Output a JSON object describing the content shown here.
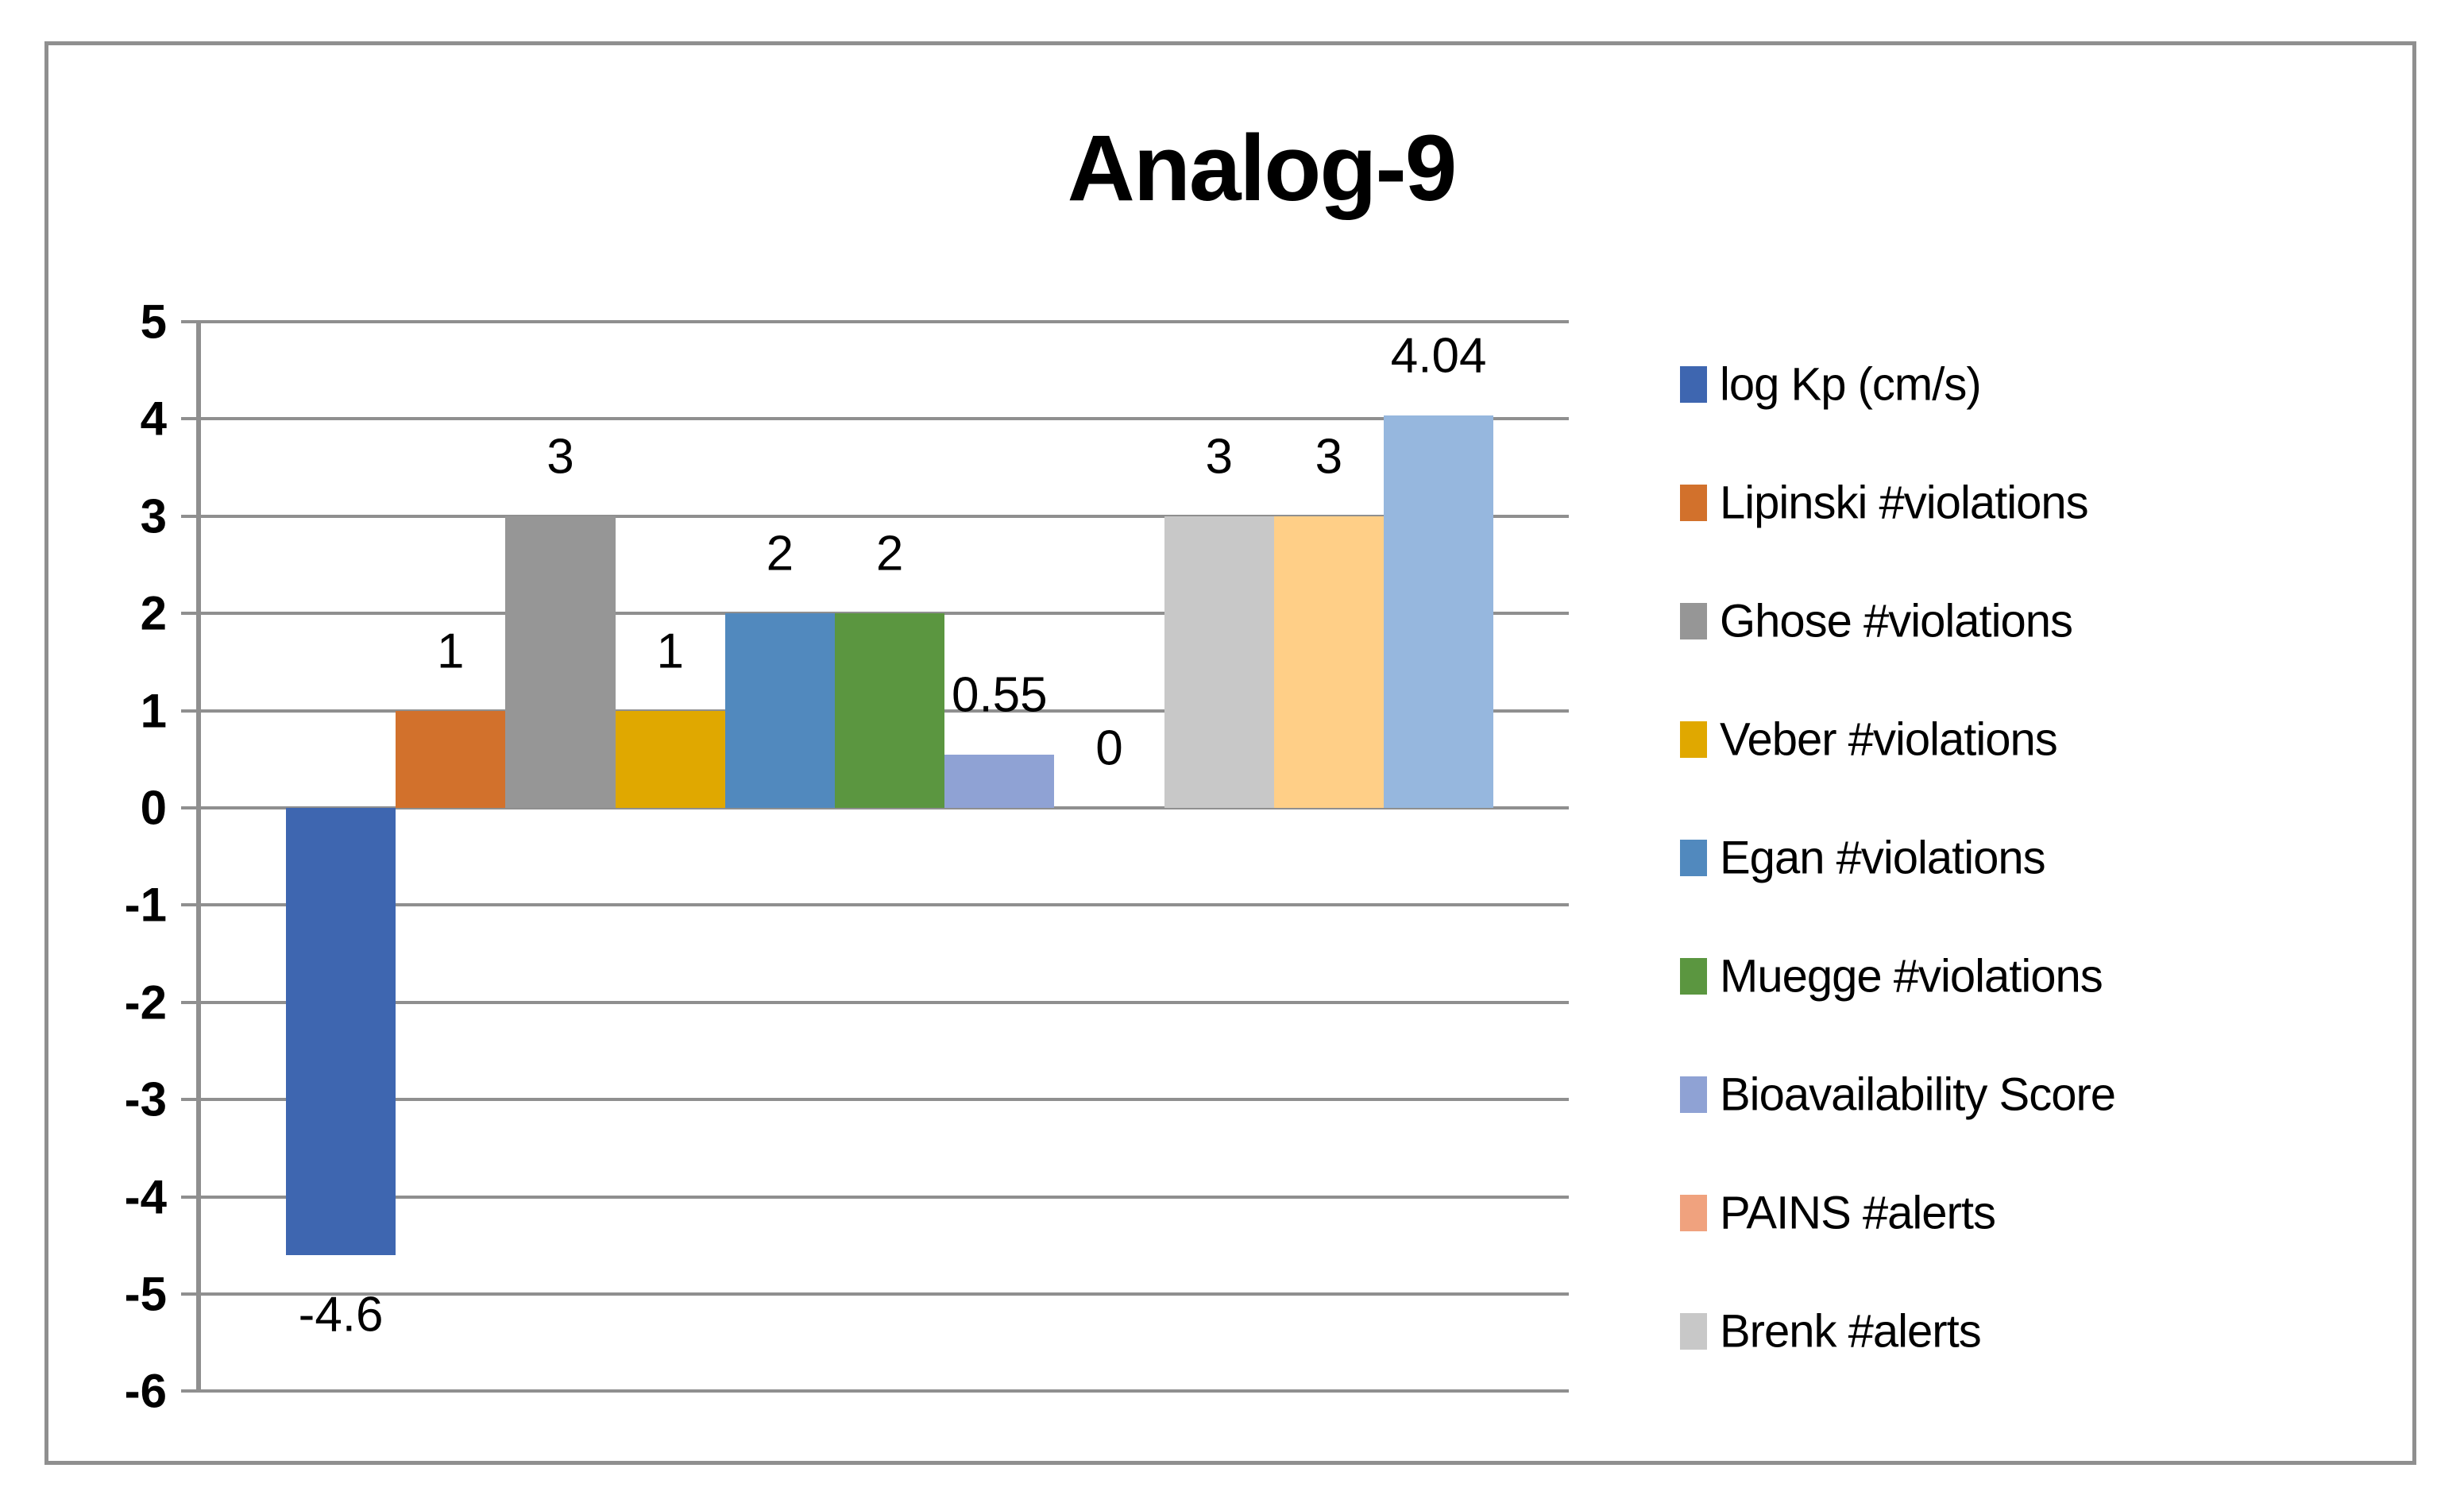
{
  "title": "Analog-9",
  "chart_data": {
    "type": "bar",
    "title": "Analog-9",
    "xlabel": "",
    "ylabel": "",
    "ylim": [
      -6,
      5
    ],
    "grid": true,
    "legend_position": "right",
    "y_axis_ticks": [
      "5",
      "4",
      "3",
      "2",
      "1",
      "0",
      "-1",
      "-2",
      "-3",
      "-4",
      "-5",
      "-6"
    ],
    "series": [
      {
        "name": "log Kp (cm/s)",
        "value": -4.6,
        "label": "-4.6",
        "color": "#3E66B0",
        "in_legend": true
      },
      {
        "name": "Lipinski #violations",
        "value": 1,
        "label": "1",
        "color": "#D2712C",
        "in_legend": true
      },
      {
        "name": "Ghose #violations",
        "value": 3,
        "label": "3",
        "color": "#969696",
        "in_legend": true
      },
      {
        "name": "Veber #violations",
        "value": 1,
        "label": "1",
        "color": "#E0A800",
        "in_legend": true
      },
      {
        "name": "Egan #violations",
        "value": 2,
        "label": "2",
        "color": "#5189BE",
        "in_legend": true
      },
      {
        "name": "Muegge #violations",
        "value": 2,
        "label": "2",
        "color": "#5B9640",
        "in_legend": true
      },
      {
        "name": "Bioavailability Score",
        "value": 0.55,
        "label": "0.55",
        "color": "#8FA2D4",
        "in_legend": true
      },
      {
        "name": "PAINS #alerts",
        "value": 0,
        "label": "0",
        "color": "#F0A27E",
        "in_legend": true
      },
      {
        "name": "Brenk #alerts",
        "value": 3,
        "label": "3",
        "color": "#C8C8C8",
        "in_legend": true
      },
      {
        "name": "",
        "value": 3,
        "label": "3",
        "color": "#FFCF87",
        "in_legend": false
      },
      {
        "name": "",
        "value": 4.04,
        "label": "4.04",
        "color": "#96B7DE",
        "in_legend": false
      }
    ]
  }
}
